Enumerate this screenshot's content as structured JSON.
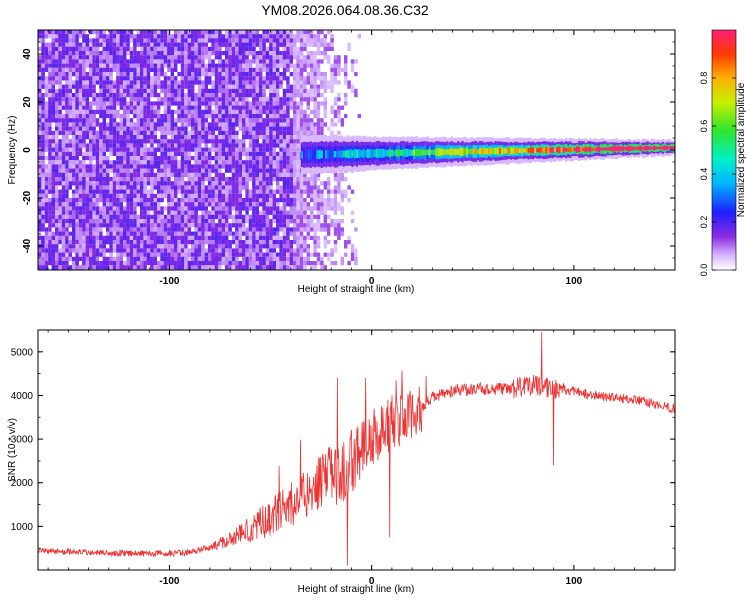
{
  "figure_title": "YM08.2026.064.08.36.C32",
  "colors": {
    "noise": "#7a22f5",
    "noise_light": "#c9a9f7",
    "snr_line": "#ee3333",
    "axis": "#000000"
  },
  "chart_data": [
    {
      "type": "heatmap",
      "name": "spectrogram",
      "title": "",
      "xlabel": "Height of straight line (km)",
      "ylabel": "Frequency (Hz)",
      "xlim": [
        -165,
        150
      ],
      "ylim": [
        -50,
        50
      ],
      "xticks": [
        -100,
        0,
        100
      ],
      "yticks": [
        -40,
        -20,
        0,
        20,
        40
      ],
      "noise_region_km": [
        -165,
        -15
      ],
      "signal_band": {
        "x_start_km": -35,
        "x_end_km": 150,
        "freq_at_start_hz": -2,
        "freq_at_end_hz": 1,
        "bandwidth_start_hz": 5,
        "bandwidth_end_hz": 2
      },
      "colorbar": {
        "label": "Normalized spectral amplitude",
        "range": [
          0,
          1
        ],
        "ticks": [
          0.0,
          0.2,
          0.4,
          0.6,
          0.8
        ],
        "tick_labels": [
          "0.0",
          "0.2",
          "0.4",
          "0.6",
          "0.8"
        ]
      }
    },
    {
      "type": "line",
      "name": "snr",
      "title": "",
      "xlabel": "Height of straight line (km)",
      "ylabel": "SNR (10 * v/v)",
      "xlim": [
        -165,
        150
      ],
      "ylim": [
        0,
        5500
      ],
      "xticks": [
        -100,
        0,
        100
      ],
      "yticks": [
        1000,
        2000,
        3000,
        4000,
        5000
      ],
      "series": [
        {
          "name": "SNR",
          "x": [
            -165,
            -140,
            -120,
            -100,
            -90,
            -80,
            -70,
            -60,
            -50,
            -40,
            -30,
            -20,
            -15,
            -10,
            -5,
            0,
            5,
            10,
            15,
            20,
            25,
            30,
            40,
            50,
            60,
            70,
            80,
            85,
            90,
            100,
            110,
            120,
            130,
            140,
            150
          ],
          "values": [
            450,
            400,
            380,
            380,
            400,
            520,
            700,
            950,
            1200,
            1500,
            1850,
            2200,
            2150,
            2500,
            2800,
            3000,
            3200,
            3400,
            3450,
            3550,
            3700,
            3950,
            4100,
            4150,
            4150,
            4150,
            4250,
            4200,
            4150,
            4100,
            4000,
            3950,
            3900,
            3800,
            3700
          ]
        }
      ],
      "spikes": [
        {
          "x": -17,
          "y": 4400
        },
        {
          "x": -3,
          "y": 4400
        },
        {
          "x": 12,
          "y": 4350
        },
        {
          "x": 84,
          "y": 5450
        },
        {
          "x": 90,
          "y": 2400
        },
        {
          "x": 9,
          "y": 750
        },
        {
          "x": -12,
          "y": 100
        }
      ]
    }
  ]
}
